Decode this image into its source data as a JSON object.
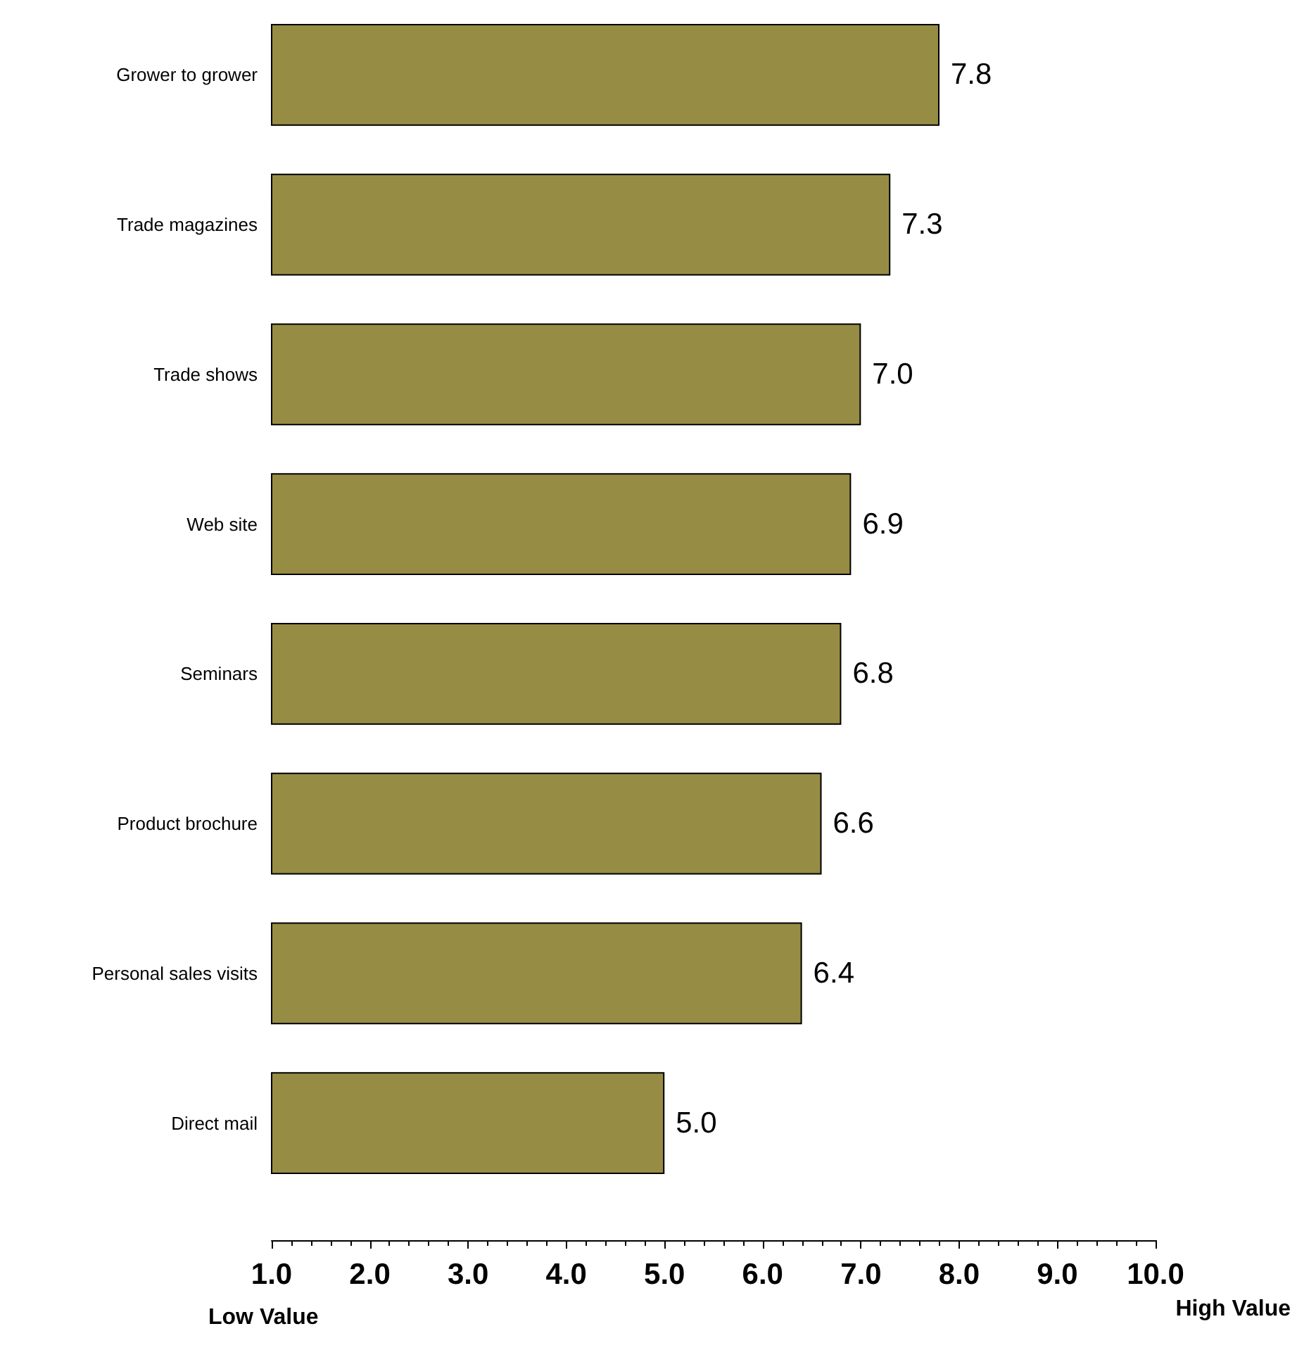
{
  "chart_data": {
    "type": "bar",
    "orientation": "horizontal",
    "categories": [
      "Grower to grower",
      "Trade magazines",
      "Trade shows",
      "Web site",
      "Seminars",
      "Product brochure",
      "Personal sales visits",
      "Direct mail"
    ],
    "values": [
      7.8,
      7.3,
      7.0,
      6.9,
      6.8,
      6.6,
      6.4,
      5.0
    ],
    "value_labels": [
      "7.8",
      "7.3",
      "7.0",
      "6.9",
      "6.8",
      "6.6",
      "6.4",
      "5.0"
    ],
    "color": "#968c44",
    "xlim": [
      1,
      10
    ],
    "xticks": [
      {
        "value": 1,
        "label": "1.0"
      },
      {
        "value": 2,
        "label": "2.0"
      },
      {
        "value": 3,
        "label": "3.0"
      },
      {
        "value": 4,
        "label": "4.0"
      },
      {
        "value": 5,
        "label": "5.0"
      },
      {
        "value": 6,
        "label": "6.0"
      },
      {
        "value": 7,
        "label": "7.0"
      },
      {
        "value": 8,
        "label": "8.0"
      },
      {
        "value": 9,
        "label": "9.0"
      },
      {
        "value": 10,
        "label": "10.0"
      }
    ],
    "annotations": [
      "Low Value",
      "High Value"
    ]
  }
}
